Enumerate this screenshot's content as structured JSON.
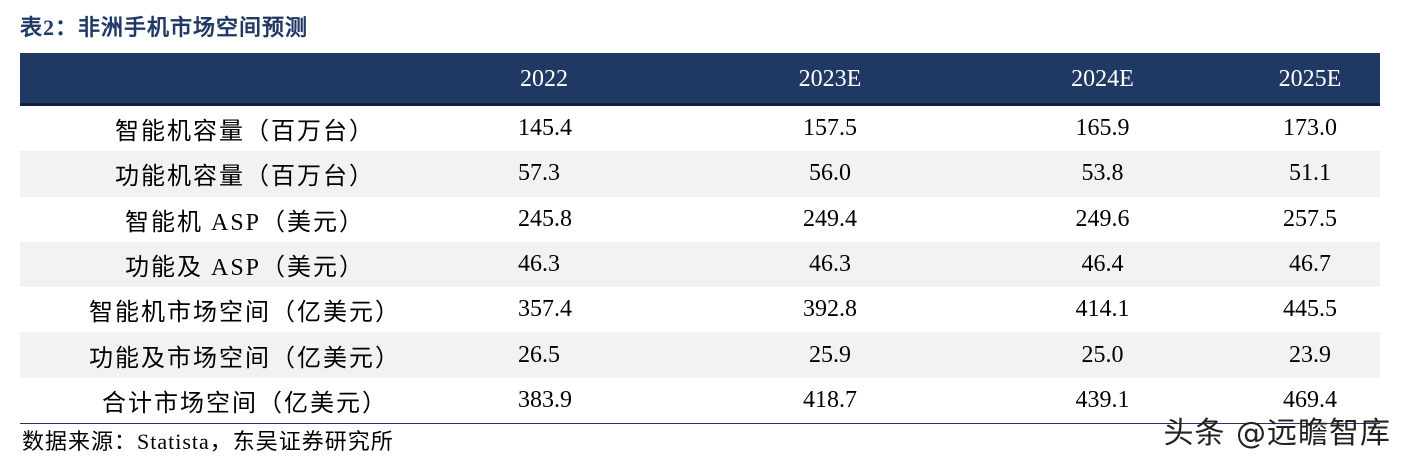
{
  "title": "表2：非洲手机市场空间预测",
  "table": {
    "headers": [
      "",
      "2022",
      "2023E",
      "2024E",
      "2025E"
    ],
    "rows": [
      {
        "label": "智能机容量（百万台）",
        "values": [
          "145.4",
          "157.5",
          "165.9",
          "173.0"
        ]
      },
      {
        "label": "功能机容量（百万台）",
        "values": [
          "57.3",
          "56.0",
          "53.8",
          "51.1"
        ]
      },
      {
        "label": "智能机 ASP（美元）",
        "values": [
          "245.8",
          "249.4",
          "249.6",
          "257.5"
        ]
      },
      {
        "label": "功能及 ASP（美元）",
        "values": [
          "46.3",
          "46.3",
          "46.4",
          "46.7"
        ]
      },
      {
        "label": "智能机市场空间（亿美元）",
        "values": [
          "357.4",
          "392.8",
          "414.1",
          "445.5"
        ]
      },
      {
        "label": "功能及市场空间（亿美元）",
        "values": [
          "26.5",
          "25.9",
          "25.0",
          "23.9"
        ]
      },
      {
        "label": "合计市场空间（亿美元）",
        "values": [
          "383.9",
          "418.7",
          "439.1",
          "469.4"
        ]
      }
    ]
  },
  "source": "数据来源：Statista，东吴证券研究所",
  "watermark": "头条 @远瞻智库",
  "colors": {
    "header_bg": "#1f3864",
    "alt_row_bg": "#f2f2f2"
  }
}
